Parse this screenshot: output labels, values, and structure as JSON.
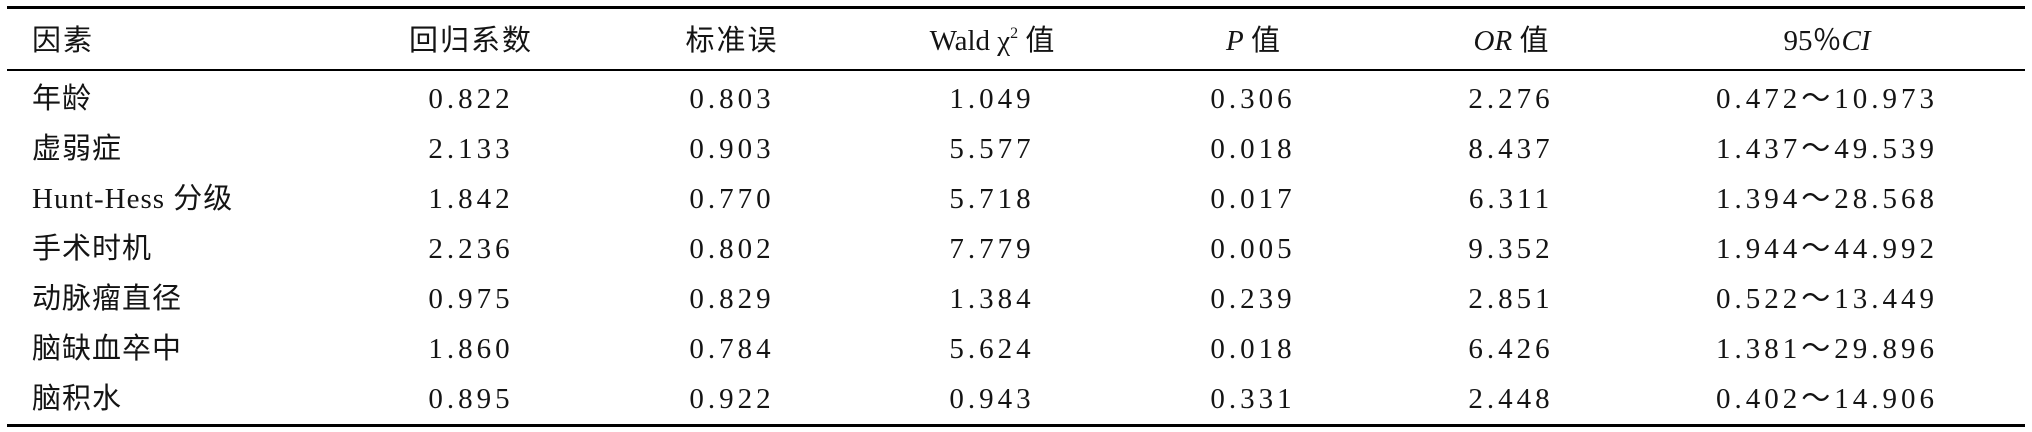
{
  "table": {
    "headers": {
      "factor": "因素",
      "coef": "回归系数",
      "se": "标准误",
      "wald_prefix": "Wald χ",
      "wald_sup": "2",
      "wald_suffix": " 值",
      "p_italic": "P",
      "p_suffix": " 值",
      "or_italic": "OR",
      "or_suffix": " 值",
      "ci_prefix": "95％",
      "ci_italic": "CI"
    },
    "rows": [
      {
        "factor": "年龄",
        "coef": "0.822",
        "se": "0.803",
        "wald": "1.049",
        "p": "0.306",
        "or": "2.276",
        "ci": "0.472～10.973"
      },
      {
        "factor": "虚弱症",
        "coef": "2.133",
        "se": "0.903",
        "wald": "5.577",
        "p": "0.018",
        "or": "8.437",
        "ci": "1.437～49.539"
      },
      {
        "factor": "Hunt-Hess 分级",
        "coef": "1.842",
        "se": "0.770",
        "wald": "5.718",
        "p": "0.017",
        "or": "6.311",
        "ci": "1.394～28.568"
      },
      {
        "factor": "手术时机",
        "coef": "2.236",
        "se": "0.802",
        "wald": "7.779",
        "p": "0.005",
        "or": "9.352",
        "ci": "1.944～44.992"
      },
      {
        "factor": "动脉瘤直径",
        "coef": "0.975",
        "se": "0.829",
        "wald": "1.384",
        "p": "0.239",
        "or": "2.851",
        "ci": "0.522～13.449"
      },
      {
        "factor": "脑缺血卒中",
        "coef": "1.860",
        "se": "0.784",
        "wald": "5.624",
        "p": "0.018",
        "or": "6.426",
        "ci": "1.381～29.896"
      },
      {
        "factor": "脑积水",
        "coef": "0.895",
        "se": "0.922",
        "wald": "0.943",
        "p": "0.331",
        "or": "2.448",
        "ci": "0.402～14.906"
      }
    ]
  }
}
